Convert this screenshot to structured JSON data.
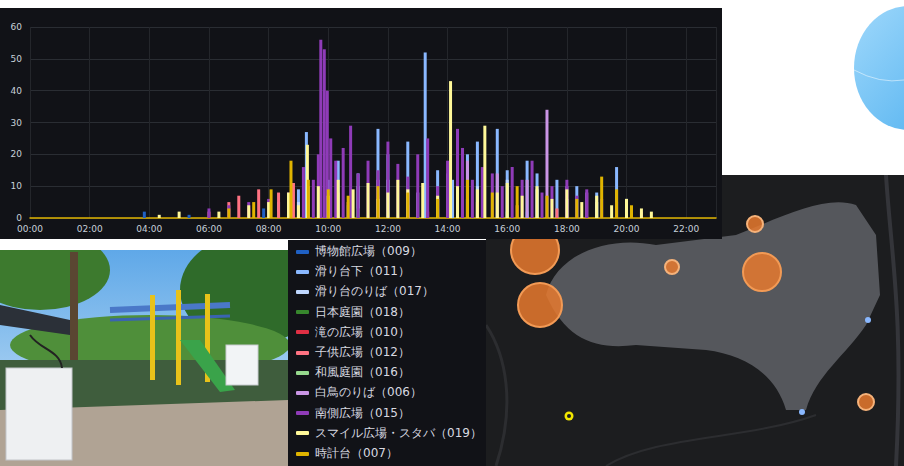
{
  "chart_data": {
    "type": "bar",
    "xlim": [
      0,
      1380
    ],
    "xticks": [
      {
        "value": 0,
        "label": "00:00"
      },
      {
        "value": 120,
        "label": "02:00"
      },
      {
        "value": 240,
        "label": "04:00"
      },
      {
        "value": 360,
        "label": "06:00"
      },
      {
        "value": 480,
        "label": "08:00"
      },
      {
        "value": 600,
        "label": "10:00"
      },
      {
        "value": 720,
        "label": "12:00"
      },
      {
        "value": 840,
        "label": "14:00"
      },
      {
        "value": 960,
        "label": "16:00"
      },
      {
        "value": 1080,
        "label": "18:00"
      },
      {
        "value": 1200,
        "label": "20:00"
      },
      {
        "value": 1320,
        "label": "22:00"
      }
    ],
    "ylim": [
      0,
      60
    ],
    "yticks": [
      0,
      10,
      20,
      30,
      40,
      50,
      60
    ],
    "grid": true,
    "legend": "bottom",
    "series": [
      {
        "name": "博物館広場（009）",
        "color": "#1f60c4",
        "x": [
          230,
          320,
          470,
          640,
          820,
          1000
        ],
        "values": [
          2,
          1,
          3,
          4,
          3,
          2
        ]
      },
      {
        "name": "滑り台下（011）",
        "color": "#8ab8ff",
        "x": [
          500,
          540,
          556,
          600,
          620,
          660,
          700,
          720,
          760,
          795,
          820,
          850,
          880,
          900,
          940,
          960,
          1000,
          1020,
          1060,
          1100,
          1140,
          1180,
          1200
        ],
        "values": [
          5,
          9,
          27,
          12,
          18,
          14,
          28,
          20,
          24,
          52,
          15,
          12,
          20,
          24,
          28,
          15,
          18,
          14,
          12,
          10,
          8,
          16,
          6
        ]
      },
      {
        "name": "滑り台のりば（017）",
        "color": "#c0d8ff",
        "x": [
          540,
          600,
          660,
          720,
          780,
          840,
          900,
          960,
          1020,
          1080,
          1140
        ],
        "values": [
          5,
          8,
          10,
          12,
          8,
          14,
          10,
          12,
          9,
          6,
          5
        ]
      },
      {
        "name": "日本庭園（018）",
        "color": "#37872d",
        "x": [
          500,
          660,
          900
        ],
        "values": [
          2,
          3,
          2
        ]
      },
      {
        "name": "滝の広場（010）",
        "color": "#e02f44",
        "x": [
          440,
          520,
          600,
          700,
          800
        ],
        "values": [
          3,
          6,
          4,
          3,
          2
        ]
      },
      {
        "name": "子供広場（012）",
        "color": "#ff7383",
        "x": [
          360,
          400,
          420,
          460,
          500,
          530,
          560,
          600,
          640,
          700,
          760,
          820,
          900,
          980,
          1060
        ],
        "values": [
          2,
          5,
          7,
          9,
          8,
          11,
          6,
          9,
          5,
          7,
          4,
          6,
          5,
          4,
          3
        ]
      },
      {
        "name": "和風庭園（016）",
        "color": "#96d98d",
        "x": [
          520,
          720,
          960
        ],
        "values": [
          3,
          2,
          2
        ]
      },
      {
        "name": "白鳥のりば（006）",
        "color": "#ca95e5",
        "x": [
          560,
          620,
          700,
          760,
          880,
          940,
          1000,
          1040,
          1080,
          1120
        ],
        "values": [
          10,
          8,
          12,
          9,
          18,
          14,
          12,
          34,
          10,
          8
        ]
      },
      {
        "name": "南側広場（015）",
        "color": "#8f3bb8",
        "x": [
          360,
          400,
          440,
          480,
          520,
          550,
          570,
          580,
          585,
          592,
          598,
          605,
          615,
          630,
          645,
          660,
          680,
          700,
          720,
          740,
          760,
          780,
          800,
          820,
          840,
          860,
          870,
          890,
          910,
          930,
          950,
          970,
          990,
          1010,
          1030,
          1050,
          1080,
          1100,
          1120,
          1150,
          1180,
          1200,
          1230
        ],
        "values": [
          3,
          4,
          5,
          6,
          8,
          16,
          12,
          20,
          56,
          53,
          40,
          25,
          18,
          22,
          29,
          14,
          18,
          15,
          24,
          17,
          13,
          20,
          25,
          10,
          18,
          28,
          22,
          12,
          16,
          14,
          10,
          16,
          12,
          18,
          8,
          10,
          12,
          7,
          9,
          6,
          5,
          4,
          2
        ]
      },
      {
        "name": "スマイル広場・スタバ（019）",
        "color": "#fff899",
        "x": [
          260,
          300,
          380,
          440,
          480,
          520,
          540,
          558,
          580,
          600,
          620,
          650,
          680,
          700,
          720,
          740,
          760,
          790,
          820,
          846,
          860,
          880,
          900,
          915,
          940,
          960,
          990,
          1020,
          1050,
          1080,
          1110,
          1140,
          1170,
          1200,
          1230,
          1250
        ],
        "values": [
          1,
          2,
          2,
          4,
          5,
          8,
          4,
          23,
          10,
          7,
          12,
          9,
          11,
          6,
          8,
          12,
          9,
          11,
          7,
          43,
          10,
          6,
          9,
          29,
          8,
          11,
          7,
          10,
          6,
          9,
          5,
          7,
          4,
          6,
          3,
          2
        ]
      },
      {
        "name": "時計台（007）",
        "color": "#e0b400",
        "x": [
          400,
          450,
          485,
          525,
          560,
          600,
          640,
          700,
          760,
          820,
          880,
          930,
          980,
          1040,
          1100,
          1150,
          1180,
          1210
        ],
        "values": [
          3,
          5,
          9,
          18,
          12,
          9,
          7,
          10,
          8,
          6,
          12,
          8,
          10,
          7,
          6,
          13,
          9,
          4
        ]
      }
    ]
  }
}
